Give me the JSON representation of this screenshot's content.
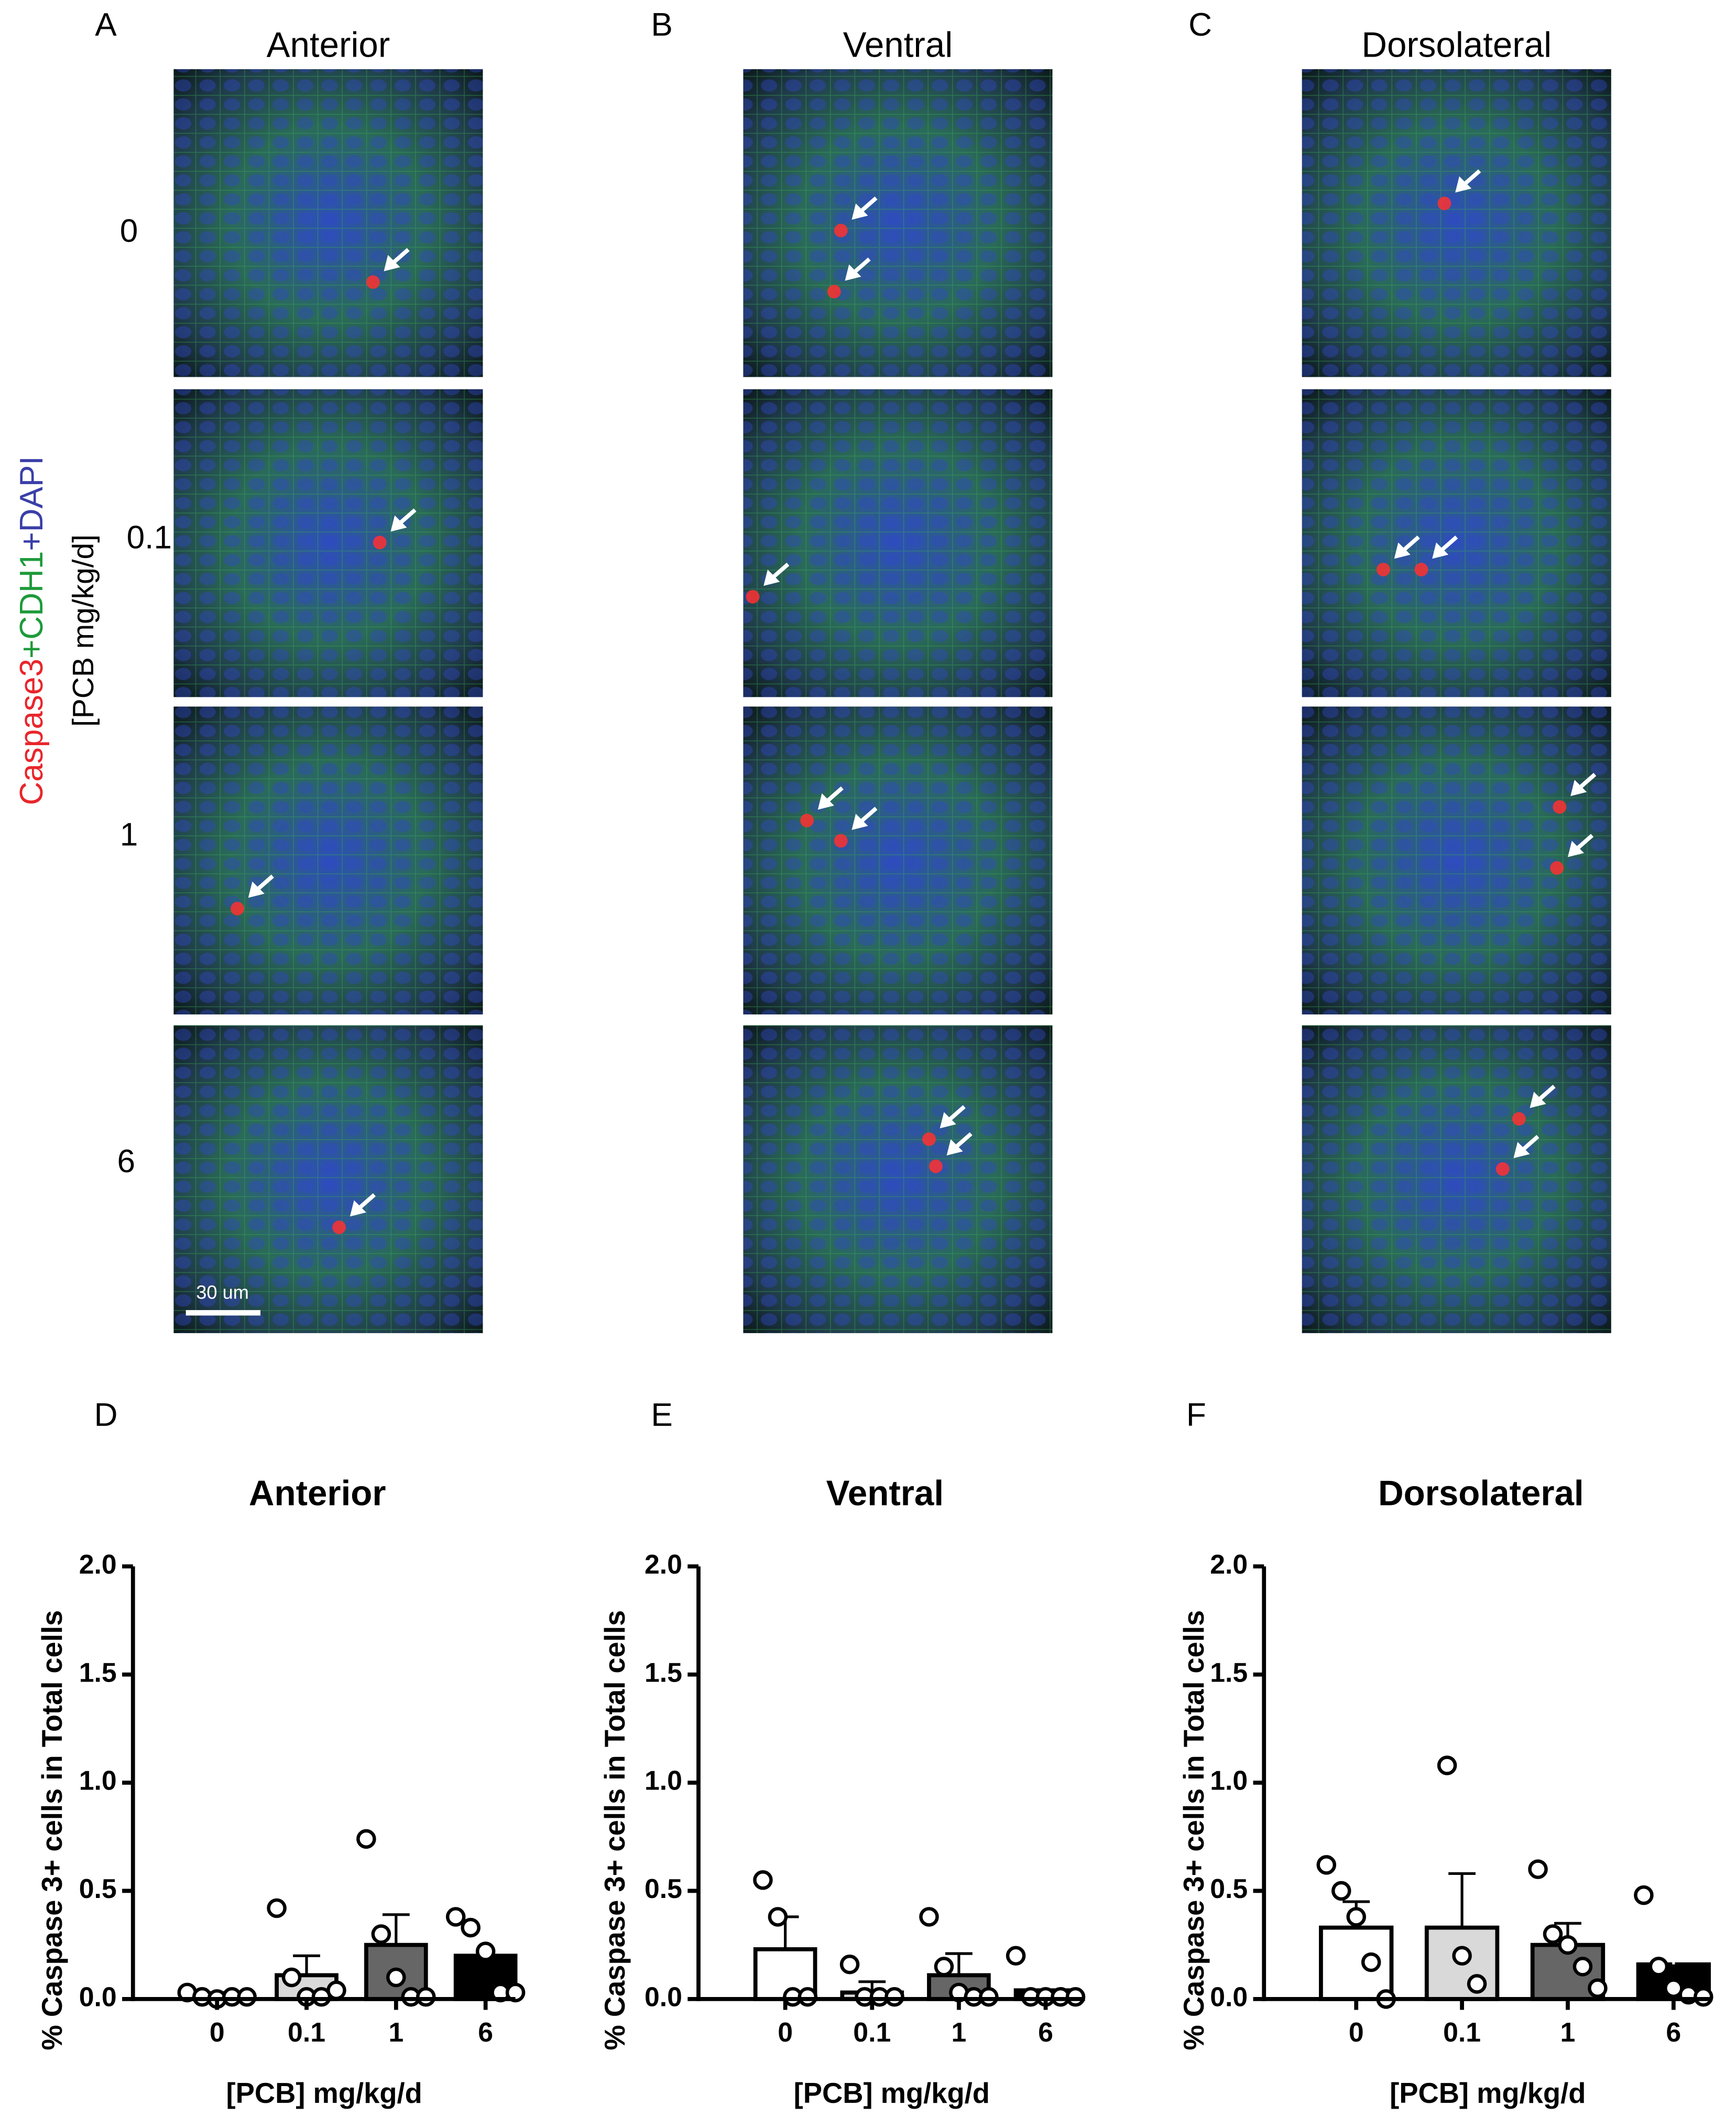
{
  "micrographs": {
    "columns": [
      {
        "label": "A",
        "title": "Anterior"
      },
      {
        "label": "B",
        "title": "Ventral"
      },
      {
        "label": "C",
        "title": "Dorsolateral"
      }
    ],
    "rows": [
      "0",
      "0.1",
      "1",
      "6"
    ],
    "stain_label": [
      {
        "text": "Caspase3",
        "color": "#e8262b"
      },
      {
        "text": "+CDH1",
        "color": "#1e9a3a"
      },
      {
        "text": "+DAPI",
        "color": "#3a3fa8"
      }
    ],
    "dose_label": "[PCB mg/kg/d]",
    "scale_bar": "30 um"
  },
  "chart_data": [
    {
      "type": "bar",
      "panel": "D",
      "title": "Anterior",
      "x_label": "[PCB] mg/kg/d",
      "y_label": "% Caspase 3+ cells in Total cells",
      "categories": [
        "0",
        "0.1",
        "1",
        "6"
      ],
      "values": [
        0.02,
        0.11,
        0.25,
        0.2
      ],
      "errors": [
        0.01,
        0.09,
        0.14,
        0.07
      ],
      "points": [
        [
          0.03,
          0.01,
          0,
          0.01,
          0.01
        ],
        [
          0.42,
          0.1,
          0.01,
          0.01,
          0.04
        ],
        [
          0.74,
          0.3,
          0.1,
          0.01,
          0.01
        ],
        [
          0.38,
          0.33,
          0.22,
          0.03,
          0.03
        ]
      ],
      "bar_colors": [
        "#ffffff",
        "#d9d9d9",
        "#666666",
        "#000000"
      ],
      "ylim": [
        0,
        2
      ],
      "yticks": [
        {
          "value": 0,
          "label": "0.0"
        },
        {
          "value": 0.5,
          "label": "0.5"
        },
        {
          "value": 1,
          "label": "1.0"
        },
        {
          "value": 1.5,
          "label": "1.5"
        },
        {
          "value": 2,
          "label": "2.0"
        }
      ]
    },
    {
      "type": "bar",
      "panel": "E",
      "title": "Ventral",
      "x_label": "[PCB] mg/kg/d",
      "y_label": "% Caspase 3+ cells in Total cells",
      "categories": [
        "0",
        "0.1",
        "1",
        "6"
      ],
      "values": [
        0.23,
        0.03,
        0.11,
        0.04
      ],
      "errors": [
        0.15,
        0.05,
        0.1,
        0.04
      ],
      "points": [
        [
          0.55,
          0.38,
          0.01,
          0.01
        ],
        [
          0.16,
          0.01,
          0.01,
          0.01
        ],
        [
          0.38,
          0.15,
          0.03,
          0.01,
          0.01
        ],
        [
          0.2,
          0.01,
          0.01,
          0.01,
          0.01
        ]
      ],
      "bar_colors": [
        "#ffffff",
        "#d9d9d9",
        "#666666",
        "#000000"
      ],
      "ylim": [
        0,
        2
      ],
      "yticks": [
        {
          "value": 0,
          "label": "0.0"
        },
        {
          "value": 0.5,
          "label": "0.5"
        },
        {
          "value": 1,
          "label": "1.0"
        },
        {
          "value": 1.5,
          "label": "1.5"
        },
        {
          "value": 2,
          "label": "2.0"
        }
      ]
    },
    {
      "type": "bar",
      "panel": "F",
      "title": "Dorsolateral",
      "x_label": "[PCB] mg/kg/d",
      "y_label": "% Caspase 3+ cells in Total cells",
      "categories": [
        "0",
        "0.1",
        "1",
        "6"
      ],
      "values": [
        0.33,
        0.33,
        0.25,
        0.16
      ],
      "errors": [
        0.12,
        0.25,
        0.1,
        0.09
      ],
      "points": [
        [
          0.62,
          0.5,
          0.38,
          0.17,
          0
        ],
        [
          1.08,
          0.2,
          0.07
        ],
        [
          0.6,
          0.3,
          0.25,
          0.15,
          0.05
        ],
        [
          0.48,
          0.15,
          0.05,
          0.02,
          0.01
        ]
      ],
      "bar_colors": [
        "#ffffff",
        "#d9d9d9",
        "#666666",
        "#000000"
      ],
      "ylim": [
        0,
        2
      ],
      "yticks": [
        {
          "value": 0,
          "label": "0.0"
        },
        {
          "value": 0.5,
          "label": "0.5"
        },
        {
          "value": 1,
          "label": "1.0"
        },
        {
          "value": 1.5,
          "label": "1.5"
        },
        {
          "value": 2,
          "label": "2.0"
        }
      ]
    }
  ]
}
